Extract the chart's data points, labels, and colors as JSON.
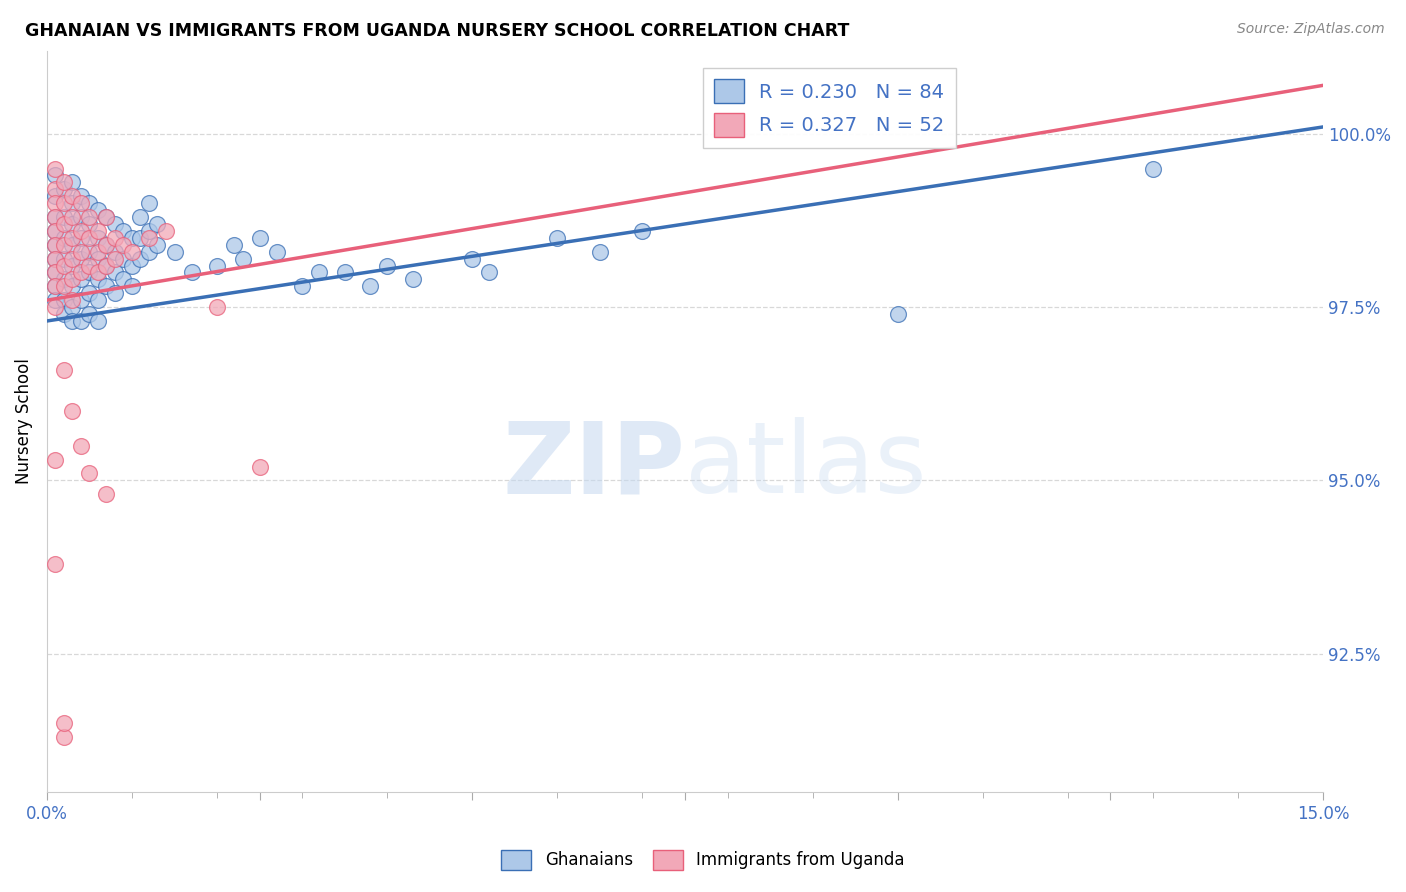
{
  "title": "GHANAIAN VS IMMIGRANTS FROM UGANDA NURSERY SCHOOL CORRELATION CHART",
  "source": "Source: ZipAtlas.com",
  "ylabel": "Nursery School",
  "xmin": 0.0,
  "xmax": 0.15,
  "ymin": 90.5,
  "ymax": 101.2,
  "yticks": [
    92.5,
    95.0,
    97.5,
    100.0
  ],
  "ytick_labels": [
    "92.5%",
    "95.0%",
    "97.5%",
    "100.0%"
  ],
  "xtick_positions": [
    0.0,
    0.025,
    0.05,
    0.075,
    0.1,
    0.125,
    0.15
  ],
  "xtick_labels_show": [
    "0.0%",
    "",
    "",
    "",
    "",
    "",
    "15.0%"
  ],
  "blue_scatter": [
    [
      0.001,
      99.4
    ],
    [
      0.001,
      99.1
    ],
    [
      0.001,
      98.8
    ],
    [
      0.001,
      98.6
    ],
    [
      0.001,
      98.4
    ],
    [
      0.001,
      98.2
    ],
    [
      0.001,
      98.0
    ],
    [
      0.001,
      97.8
    ],
    [
      0.001,
      97.6
    ],
    [
      0.002,
      99.2
    ],
    [
      0.002,
      98.8
    ],
    [
      0.002,
      98.5
    ],
    [
      0.002,
      98.2
    ],
    [
      0.002,
      97.9
    ],
    [
      0.002,
      97.6
    ],
    [
      0.002,
      97.4
    ],
    [
      0.003,
      99.3
    ],
    [
      0.003,
      99.0
    ],
    [
      0.003,
      98.7
    ],
    [
      0.003,
      98.4
    ],
    [
      0.003,
      98.1
    ],
    [
      0.003,
      97.8
    ],
    [
      0.003,
      97.5
    ],
    [
      0.003,
      97.3
    ],
    [
      0.004,
      99.1
    ],
    [
      0.004,
      98.8
    ],
    [
      0.004,
      98.5
    ],
    [
      0.004,
      98.2
    ],
    [
      0.004,
      97.9
    ],
    [
      0.004,
      97.6
    ],
    [
      0.004,
      97.3
    ],
    [
      0.005,
      99.0
    ],
    [
      0.005,
      98.7
    ],
    [
      0.005,
      98.3
    ],
    [
      0.005,
      98.0
    ],
    [
      0.005,
      97.7
    ],
    [
      0.005,
      97.4
    ],
    [
      0.006,
      98.9
    ],
    [
      0.006,
      98.5
    ],
    [
      0.006,
      98.2
    ],
    [
      0.006,
      97.9
    ],
    [
      0.006,
      97.6
    ],
    [
      0.006,
      97.3
    ],
    [
      0.007,
      98.8
    ],
    [
      0.007,
      98.4
    ],
    [
      0.007,
      98.1
    ],
    [
      0.007,
      97.8
    ],
    [
      0.008,
      98.7
    ],
    [
      0.008,
      98.3
    ],
    [
      0.008,
      98.0
    ],
    [
      0.008,
      97.7
    ],
    [
      0.009,
      98.6
    ],
    [
      0.009,
      98.2
    ],
    [
      0.009,
      97.9
    ],
    [
      0.01,
      98.5
    ],
    [
      0.01,
      98.1
    ],
    [
      0.01,
      97.8
    ],
    [
      0.011,
      98.8
    ],
    [
      0.011,
      98.5
    ],
    [
      0.011,
      98.2
    ],
    [
      0.012,
      99.0
    ],
    [
      0.012,
      98.6
    ],
    [
      0.012,
      98.3
    ],
    [
      0.013,
      98.7
    ],
    [
      0.013,
      98.4
    ],
    [
      0.015,
      98.3
    ],
    [
      0.017,
      98.0
    ],
    [
      0.02,
      98.1
    ],
    [
      0.022,
      98.4
    ],
    [
      0.023,
      98.2
    ],
    [
      0.025,
      98.5
    ],
    [
      0.027,
      98.3
    ],
    [
      0.03,
      97.8
    ],
    [
      0.032,
      98.0
    ],
    [
      0.035,
      98.0
    ],
    [
      0.038,
      97.8
    ],
    [
      0.04,
      98.1
    ],
    [
      0.043,
      97.9
    ],
    [
      0.05,
      98.2
    ],
    [
      0.052,
      98.0
    ],
    [
      0.06,
      98.5
    ],
    [
      0.065,
      98.3
    ],
    [
      0.07,
      98.6
    ],
    [
      0.1,
      97.4
    ],
    [
      0.13,
      99.5
    ]
  ],
  "pink_scatter": [
    [
      0.001,
      99.5
    ],
    [
      0.001,
      99.2
    ],
    [
      0.001,
      99.0
    ],
    [
      0.001,
      98.8
    ],
    [
      0.001,
      98.6
    ],
    [
      0.001,
      98.4
    ],
    [
      0.001,
      98.2
    ],
    [
      0.001,
      98.0
    ],
    [
      0.001,
      97.8
    ],
    [
      0.001,
      97.5
    ],
    [
      0.002,
      99.3
    ],
    [
      0.002,
      99.0
    ],
    [
      0.002,
      98.7
    ],
    [
      0.002,
      98.4
    ],
    [
      0.002,
      98.1
    ],
    [
      0.002,
      97.8
    ],
    [
      0.003,
      99.1
    ],
    [
      0.003,
      98.8
    ],
    [
      0.003,
      98.5
    ],
    [
      0.003,
      98.2
    ],
    [
      0.003,
      97.9
    ],
    [
      0.003,
      97.6
    ],
    [
      0.004,
      99.0
    ],
    [
      0.004,
      98.6
    ],
    [
      0.004,
      98.3
    ],
    [
      0.004,
      98.0
    ],
    [
      0.005,
      98.8
    ],
    [
      0.005,
      98.5
    ],
    [
      0.005,
      98.1
    ],
    [
      0.006,
      98.6
    ],
    [
      0.006,
      98.3
    ],
    [
      0.006,
      98.0
    ],
    [
      0.007,
      98.8
    ],
    [
      0.007,
      98.4
    ],
    [
      0.007,
      98.1
    ],
    [
      0.008,
      98.5
    ],
    [
      0.008,
      98.2
    ],
    [
      0.009,
      98.4
    ],
    [
      0.01,
      98.3
    ],
    [
      0.012,
      98.5
    ],
    [
      0.014,
      98.6
    ],
    [
      0.02,
      97.5
    ],
    [
      0.002,
      96.6
    ],
    [
      0.001,
      95.3
    ],
    [
      0.003,
      96.0
    ],
    [
      0.004,
      95.5
    ],
    [
      0.005,
      95.1
    ],
    [
      0.007,
      94.8
    ],
    [
      0.025,
      95.2
    ],
    [
      0.001,
      93.8
    ],
    [
      0.002,
      91.3
    ],
    [
      0.002,
      91.5
    ]
  ],
  "blue_line_x": [
    0.0,
    0.15
  ],
  "blue_line_y": [
    97.3,
    100.1
  ],
  "pink_line_x": [
    0.0,
    0.15
  ],
  "pink_line_y": [
    97.6,
    100.7
  ],
  "blue_color": "#3a6fb5",
  "pink_color": "#e8607a",
  "blue_scatter_color": "#adc8e8",
  "pink_scatter_color": "#f2a8b8",
  "watermark_zip": "ZIP",
  "watermark_atlas": "atlas",
  "background_color": "#ffffff",
  "grid_color": "#d8d8d8"
}
